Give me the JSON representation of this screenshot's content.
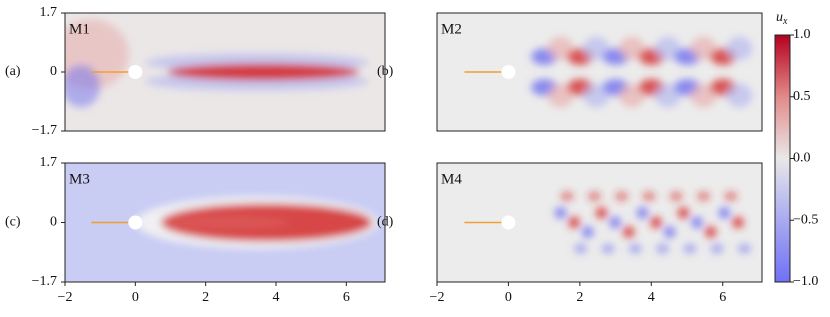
{
  "chart_data": [
    {
      "type": "field",
      "title": "M1",
      "panel_label": "(a)",
      "xlim": [
        -2,
        7.1
      ],
      "ylim": [
        -1.7,
        1.7
      ],
      "yticks": [
        {
          "value": -1.7,
          "label": "−1.7"
        },
        0,
        1.7
      ]
    },
    {
      "type": "field",
      "title": "M2",
      "panel_label": "(b)",
      "xlim": [
        -2,
        7.1
      ],
      "ylim": [
        -1.7,
        1.7
      ]
    },
    {
      "type": "field",
      "title": "M3",
      "panel_label": "(c)",
      "xlim": [
        -2,
        7.1
      ],
      "ylim": [
        -1.7,
        1.7
      ],
      "yticks": [
        {
          "value": -1.7,
          "label": "−1.7"
        },
        0,
        1.7
      ],
      "xticks": [
        {
          "value": -2,
          "label": "−2"
        },
        0,
        2,
        4,
        6
      ]
    },
    {
      "type": "field",
      "title": "M4",
      "panel_label": "(d)",
      "xlim": [
        -2,
        7.1
      ],
      "ylim": [
        -1.7,
        1.7
      ],
      "xticks": [
        {
          "value": -2,
          "label": "−2"
        },
        0,
        2,
        4,
        6
      ]
    }
  ],
  "colorbar": {
    "label": "u",
    "label_sub": "x",
    "lim": [
      -1,
      1
    ],
    "ticks": [
      {
        "value": 1,
        "label": "1.0"
      },
      0.5,
      {
        "value": 0,
        "label": "0.0"
      },
      {
        "value": -0.5,
        "label": "−0.5"
      },
      {
        "value": -1,
        "label": "−1.0"
      }
    ]
  }
}
